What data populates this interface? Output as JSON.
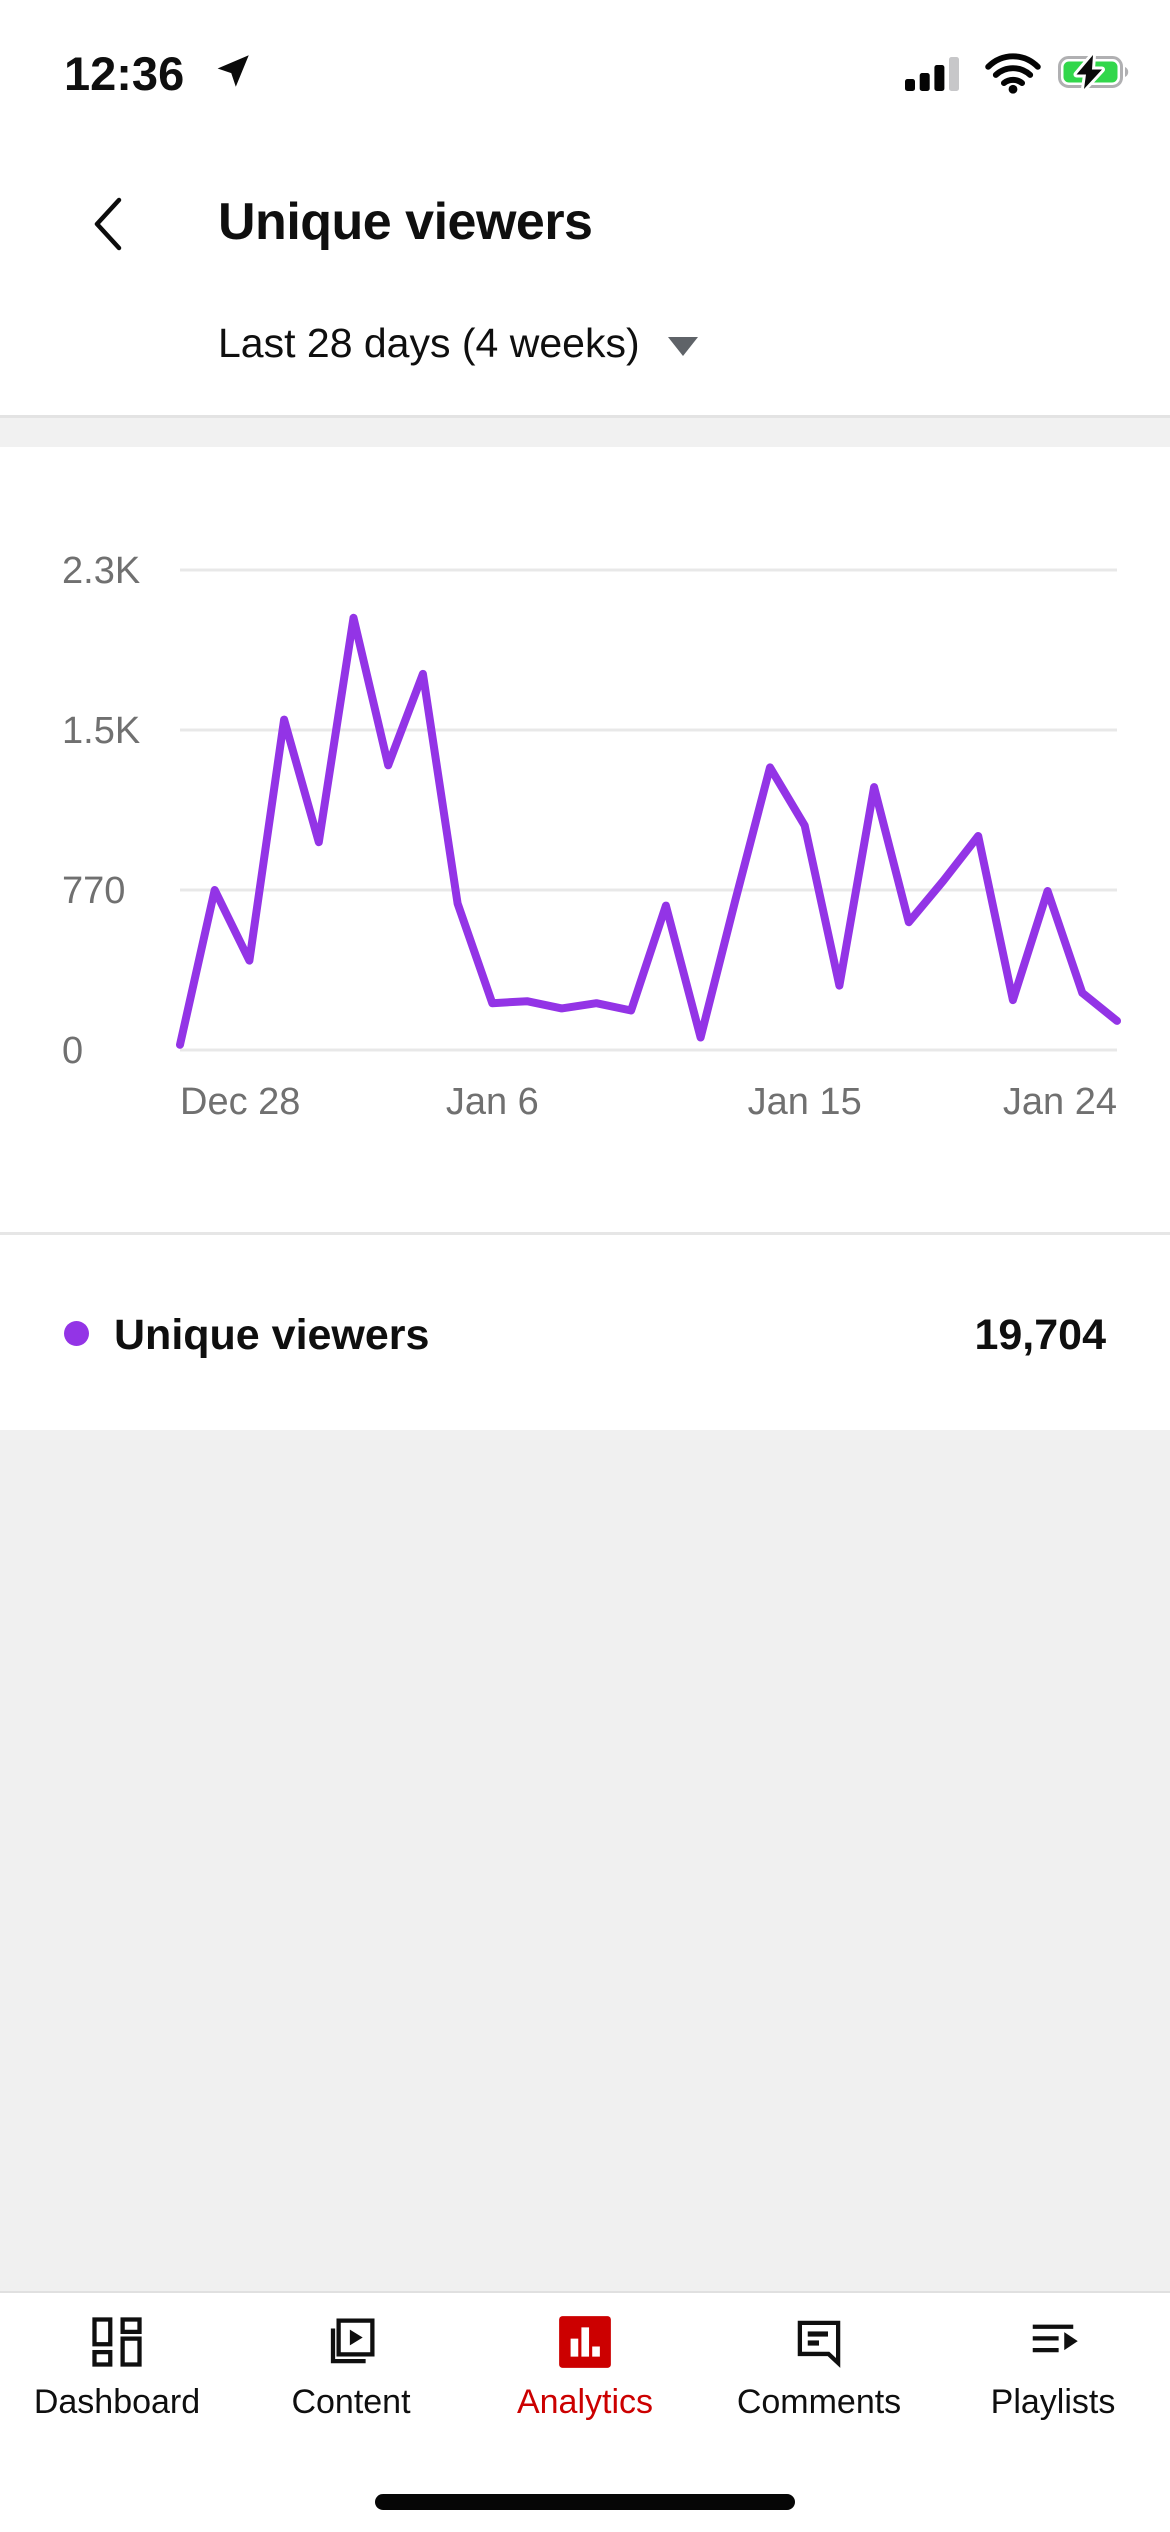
{
  "status_bar": {
    "time": "12:36"
  },
  "header": {
    "title": "Unique viewers",
    "date_range": "Last 28 days (4 weeks)"
  },
  "chart_data": {
    "type": "line",
    "title": "Unique viewers",
    "series_name": "Unique viewers",
    "x_start": "Dec 28",
    "x_end": "Jan 24",
    "values": [
      25,
      770,
      430,
      1590,
      1000,
      2080,
      1370,
      1810,
      705,
      225,
      235,
      200,
      225,
      190,
      695,
      60,
      720,
      1360,
      1080,
      310,
      1265,
      615,
      815,
      1030,
      240,
      765,
      275,
      140
    ],
    "y_ticks": [
      {
        "label": "0",
        "value": 0
      },
      {
        "label": "770",
        "value": 770
      },
      {
        "label": "1.5K",
        "value": 1540
      },
      {
        "label": "2.3K",
        "value": 2310
      }
    ],
    "x_ticks": [
      {
        "label": "Dec 28",
        "index": 0,
        "anchor": "start"
      },
      {
        "label": "Jan 6",
        "index": 9,
        "anchor": "middle"
      },
      {
        "label": "Jan 15",
        "index": 18,
        "anchor": "middle"
      },
      {
        "label": "Jan 24",
        "index": 27,
        "anchor": "end"
      }
    ],
    "ylim": [
      0,
      2310
    ],
    "grid": true,
    "legend_position": "below"
  },
  "legend": {
    "label": "Unique viewers",
    "value": "19,704"
  },
  "tab_bar": {
    "items": [
      {
        "label": "Dashboard",
        "active": false
      },
      {
        "label": "Content",
        "active": false
      },
      {
        "label": "Analytics",
        "active": true
      },
      {
        "label": "Comments",
        "active": false
      },
      {
        "label": "Playlists",
        "active": false
      }
    ]
  },
  "colors": {
    "line_purple": "#9334e6",
    "tab_active_red": "#cc0000",
    "battery_charge_green": "#32d74b"
  }
}
